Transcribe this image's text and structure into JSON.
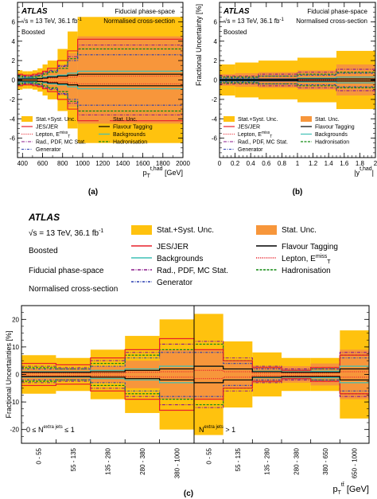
{
  "figure": {
    "panel_labels": [
      "(a)",
      "(b)",
      "(c)"
    ]
  },
  "legend_entries": {
    "total": "Stat.+Syst. Unc.",
    "stat": "Stat. Unc.",
    "jes": "JES/JER",
    "flavour": "Flavour Tagging",
    "lepton": "Lepton, E",
    "lepton_sup": "miss",
    "lepton_sub": "T",
    "backgrounds": "Backgrounds",
    "rad": "Rad., PDF, MC Stat.",
    "hadronisation": "Hadronisation",
    "generator": "Generator"
  },
  "colors": {
    "total": "#ffc20e",
    "stat": "#f7963b",
    "jes": "#e8202a",
    "flavour": "#000000",
    "lepton": "#e8202a",
    "backgrounds": "#3fc0b5",
    "rad": "#8b1a8b",
    "hadronisation": "#118a11",
    "generator": "#2b3fb0"
  },
  "chart_data": [
    {
      "id": "a",
      "type": "bar",
      "atlas": "ATLAS",
      "energy": "√s = 13 TeV, 36.1 fb",
      "energy_sup": "-1",
      "region": "Boosted",
      "phase_space": "Fiducial phase-space",
      "normalisation": "Normalised cross-section",
      "ylabel": "",
      "xlabel_main": "p",
      "xlabel_sub": "T",
      "xlabel_sup": "t,had",
      "xlabel_unit": " [GeV]",
      "xlim": [
        350,
        2000
      ],
      "ylim": [
        -8,
        8
      ],
      "xticks": [
        400,
        600,
        800,
        1000,
        1200,
        1400,
        1600,
        1800,
        2000
      ],
      "yticks": [
        -6,
        -4,
        -2,
        0,
        2,
        4,
        6
      ],
      "bins": [
        355,
        400,
        450,
        500,
        550,
        600,
        650,
        750,
        850,
        950,
        2000
      ],
      "total": [
        1.0,
        0.9,
        0.9,
        1.0,
        1.2,
        1.6,
        2.0,
        3.2,
        5.0,
        6.5
      ],
      "stat": [
        0.2,
        0.2,
        0.25,
        0.3,
        0.4,
        0.6,
        0.8,
        1.5,
        2.8,
        4.5
      ],
      "jes": [
        0.6,
        0.5,
        0.5,
        0.6,
        0.7,
        0.9,
        1.2,
        2.0,
        3.0,
        4.2
      ],
      "flavour": [
        0.1,
        0.1,
        0.1,
        0.1,
        0.15,
        0.2,
        0.3,
        0.4,
        0.5,
        0.6
      ],
      "lepton": [
        0.1,
        0.1,
        0.1,
        0.1,
        0.1,
        0.15,
        0.2,
        0.2,
        0.3,
        0.4
      ],
      "backgrounds": [
        0.2,
        0.2,
        0.2,
        0.2,
        0.2,
        0.3,
        0.4,
        0.5,
        0.7,
        0.9
      ],
      "rad": [
        0.5,
        0.4,
        0.4,
        0.5,
        0.6,
        0.8,
        1.0,
        1.5,
        2.4,
        3.6
      ],
      "hadronisation": [
        0.4,
        0.3,
        0.3,
        0.3,
        0.4,
        0.6,
        0.8,
        1.2,
        2.2,
        3.2
      ],
      "generator": [
        0.3,
        0.3,
        0.3,
        0.4,
        0.5,
        0.7,
        0.9,
        1.4,
        2.0,
        2.6
      ]
    },
    {
      "id": "b",
      "type": "bar",
      "atlas": "ATLAS",
      "energy": "√s = 13 TeV, 36.1 fb",
      "energy_sup": "-1",
      "region": "Boosted",
      "phase_space": "Fiducial phase-space",
      "normalisation": "Normalised cross-section",
      "ylabel": "Fractional Uncertainty [%]",
      "xlabel_main": "|y",
      "xlabel_sup": "t,had",
      "xlabel_end": "|",
      "xlim": [
        0,
        2
      ],
      "ylim": [
        -8,
        8
      ],
      "xticks": [
        0,
        0.2,
        0.4,
        0.6,
        0.8,
        1,
        1.2,
        1.4,
        1.6,
        1.8,
        2
      ],
      "yticks": [
        -6,
        -4,
        -2,
        0,
        2,
        4,
        6
      ],
      "bins": [
        0,
        0.2,
        0.5,
        1.0,
        1.5,
        2.0
      ],
      "total": [
        1.6,
        1.8,
        2.0,
        2.3,
        3.0
      ],
      "stat": [
        0.6,
        0.7,
        0.8,
        1.0,
        1.6
      ],
      "jes": [
        0.1,
        0.1,
        0.15,
        0.2,
        0.3
      ],
      "flavour": [
        0.05,
        0.05,
        0.05,
        0.1,
        0.1
      ],
      "lepton": [
        0.05,
        0.05,
        0.05,
        0.05,
        0.1
      ],
      "backgrounds": [
        0.1,
        0.1,
        0.1,
        0.2,
        0.3
      ],
      "rad": [
        0.4,
        0.4,
        0.6,
        0.8,
        1.1
      ],
      "hadronisation": [
        0.3,
        0.3,
        0.4,
        0.6,
        0.8
      ],
      "generator": [
        0.2,
        0.2,
        0.4,
        0.5,
        0.7
      ]
    },
    {
      "id": "c",
      "type": "bar",
      "atlas": "ATLAS",
      "energy": "√s = 13 TeV, 36.1 fb",
      "energy_sup": "-1",
      "region": "Boosted",
      "phase_space": "Fiducial phase-space",
      "normalisation": "Normalised cross-section",
      "ylabel": "Fractional Uncertainties [%]",
      "xlabel_main": "p",
      "xlabel_sub": "T",
      "xlabel_sup": "tt̄",
      "xlabel_unit": " [GeV]",
      "ylim": [
        -25,
        25
      ],
      "yticks": [
        -20,
        -10,
        0,
        10,
        20
      ],
      "region1_label": "0 ≤ N",
      "region1_sup": "extra jets",
      "region1_end": " ≤ 1",
      "region2_label": "N",
      "region2_sup": "extra jets",
      "region2_end": " > 1",
      "categories": [
        "0 - 55",
        "55 - 135",
        "135 - 280",
        "280 - 380",
        "380 - 1000",
        "0 - 55",
        "55 - 135",
        "135 - 280",
        "280 - 380",
        "380 - 650",
        "650 - 1000"
      ],
      "total": [
        7.0,
        6.0,
        9.0,
        14.0,
        20.0,
        22.0,
        12.0,
        8.0,
        6.0,
        6.0,
        16.0
      ],
      "stat": [
        2.0,
        2.0,
        3.0,
        5.0,
        9.0,
        9.0,
        5.0,
        3.0,
        3.0,
        4.0,
        9.0
      ],
      "jes": [
        4.0,
        3.5,
        6.0,
        9.0,
        13.0,
        9.0,
        5.0,
        2.5,
        1.5,
        2.5,
        7.0
      ],
      "flavour": [
        0.8,
        0.8,
        1.0,
        1.5,
        2.0,
        3.0,
        2.0,
        1.0,
        0.8,
        0.8,
        2.0
      ],
      "lepton": [
        0.5,
        0.5,
        0.5,
        0.8,
        1.0,
        1.5,
        1.0,
        0.5,
        0.5,
        0.5,
        1.0
      ],
      "backgrounds": [
        1.0,
        1.0,
        1.5,
        2.0,
        3.0,
        3.0,
        2.0,
        1.2,
        1.0,
        1.2,
        3.0
      ],
      "rad": [
        3.0,
        2.5,
        5.0,
        8.0,
        11.0,
        12.0,
        6.0,
        3.0,
        2.0,
        2.5,
        8.0
      ],
      "hadronisation": [
        2.5,
        2.0,
        4.0,
        7.0,
        9.0,
        11.0,
        5.0,
        2.5,
        1.5,
        2.0,
        7.0
      ],
      "generator": [
        2.0,
        2.0,
        3.0,
        6.0,
        8.0,
        8.0,
        4.0,
        2.0,
        1.5,
        2.0,
        6.0
      ]
    }
  ]
}
